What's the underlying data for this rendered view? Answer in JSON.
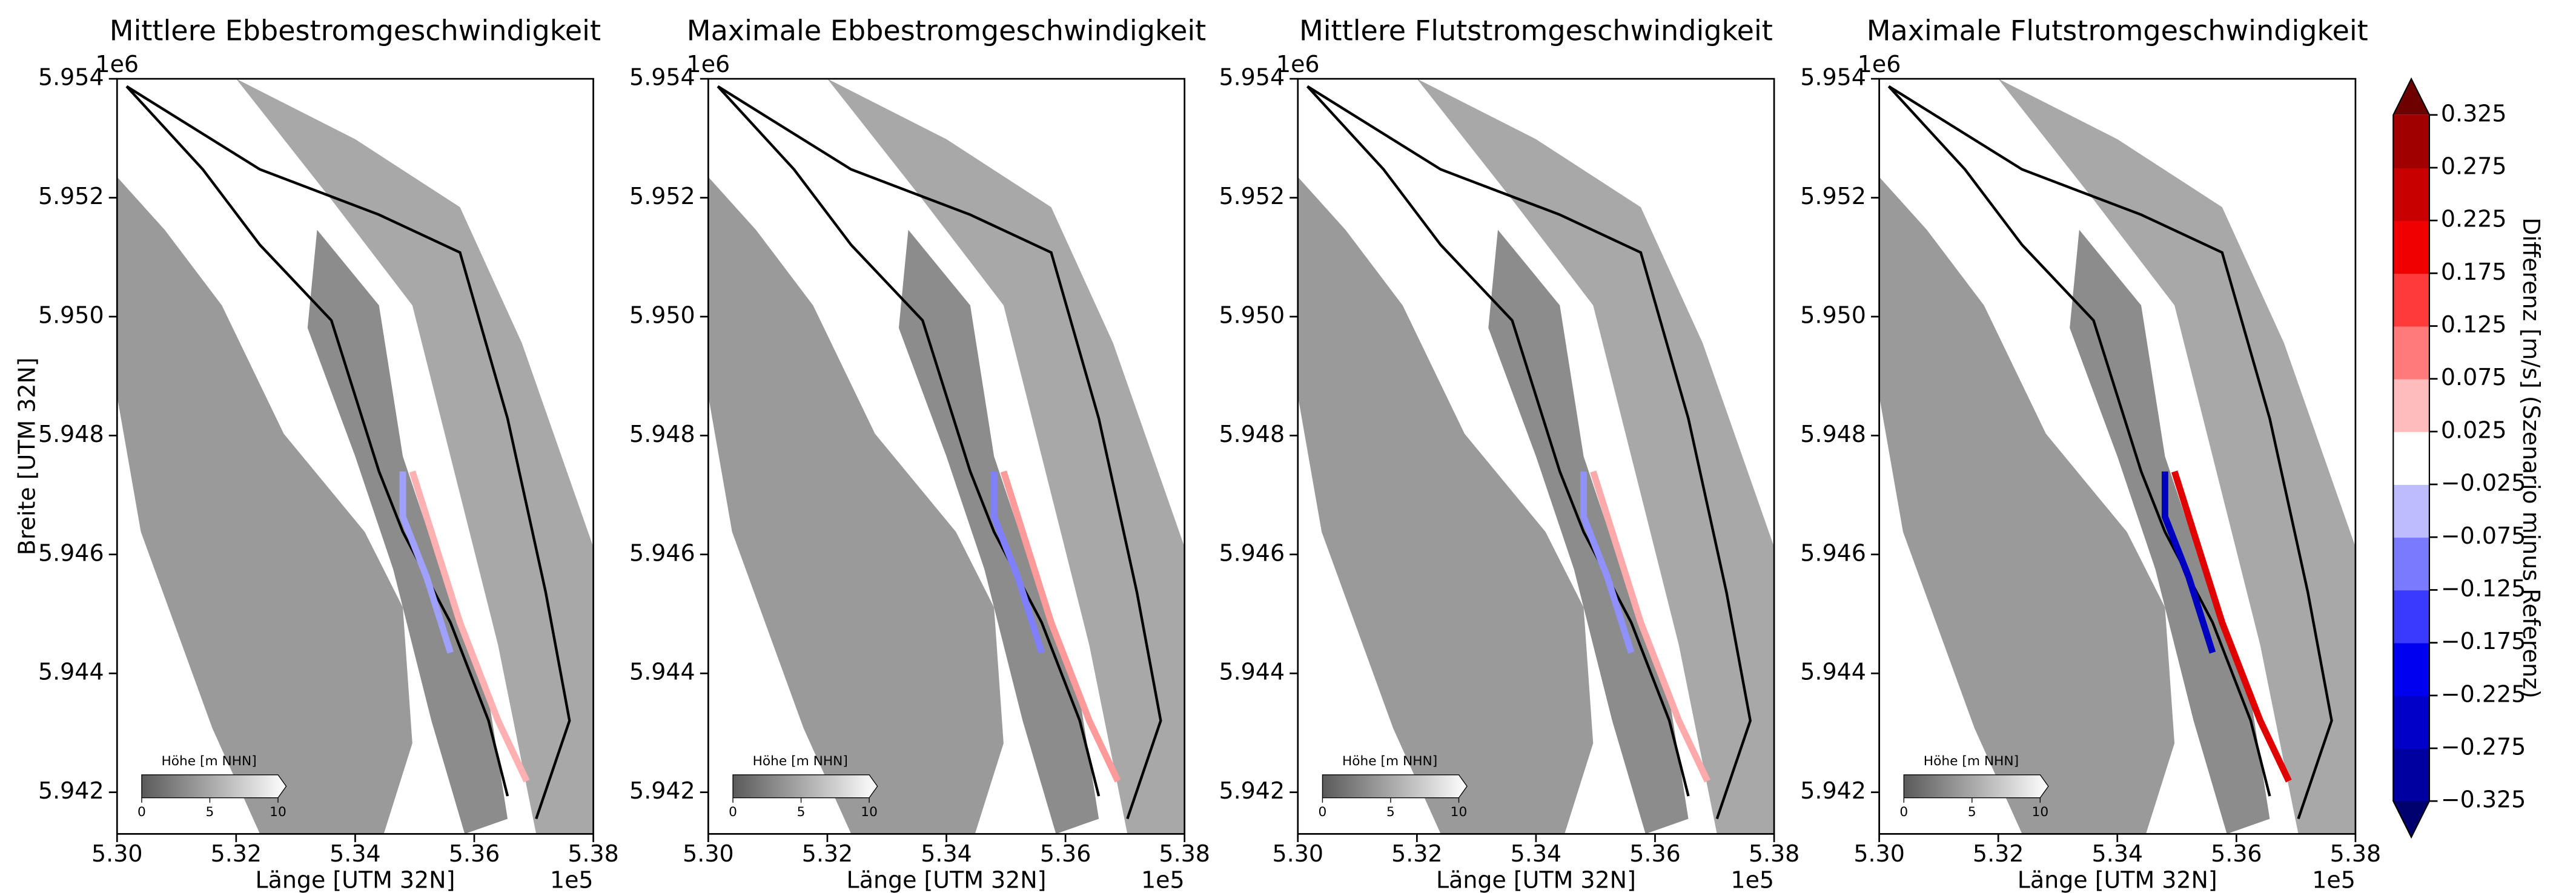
{
  "chart_data": [
    {
      "type": "map",
      "title": "Mittlere Ebbestromgeschwindigkeit",
      "xlabel": "Länge [UTM 32N]",
      "ylabel": "Breite [UTM 32N]",
      "x_offset": "1e5",
      "y_offset": "1e6",
      "xlim": [
        530000,
        538000
      ],
      "ylim": [
        5941300,
        5954000
      ],
      "xticks": [
        {
          "value": 530000,
          "label": "5.30"
        },
        {
          "value": 532000,
          "label": "5.32"
        },
        {
          "value": 534000,
          "label": "5.34"
        },
        {
          "value": 536000,
          "label": "5.36"
        },
        {
          "value": 538000,
          "label": "5.38"
        }
      ],
      "yticks": [
        {
          "value": 5942000,
          "label": "5.942"
        },
        {
          "value": 5944000,
          "label": "5.944"
        },
        {
          "value": 5946000,
          "label": "5.946"
        },
        {
          "value": 5948000,
          "label": "5.948"
        },
        {
          "value": 5950000,
          "label": "5.950"
        },
        {
          "value": 5952000,
          "label": "5.952"
        },
        {
          "value": 5954000,
          "label": "5.954"
        }
      ],
      "inset": {
        "label": "Höhe [m NHN]",
        "lim": [
          0,
          10
        ],
        "ticks": [
          0,
          5,
          10
        ]
      }
    },
    {
      "type": "map",
      "title": "Maximale Ebbestromgeschwindigkeit",
      "xlabel": "Länge [UTM 32N]",
      "x_offset": "1e5",
      "y_offset": "1e6",
      "xlim": [
        530000,
        538000
      ],
      "ylim": [
        5941300,
        5954000
      ],
      "xticks": [
        {
          "value": 530000,
          "label": "5.30"
        },
        {
          "value": 532000,
          "label": "5.32"
        },
        {
          "value": 534000,
          "label": "5.34"
        },
        {
          "value": 536000,
          "label": "5.36"
        },
        {
          "value": 538000,
          "label": "5.38"
        }
      ],
      "yticks": [
        {
          "value": 5942000,
          "label": "5.942"
        },
        {
          "value": 5944000,
          "label": "5.944"
        },
        {
          "value": 5946000,
          "label": "5.946"
        },
        {
          "value": 5948000,
          "label": "5.948"
        },
        {
          "value": 5950000,
          "label": "5.950"
        },
        {
          "value": 5952000,
          "label": "5.952"
        },
        {
          "value": 5954000,
          "label": "5.954"
        }
      ],
      "inset": {
        "label": "Höhe [m NHN]",
        "lim": [
          0,
          10
        ],
        "ticks": [
          0,
          5,
          10
        ]
      }
    },
    {
      "type": "map",
      "title": "Mittlere Flutstromgeschwindigkeit",
      "xlabel": "Länge [UTM 32N]",
      "x_offset": "1e5",
      "y_offset": "1e6",
      "xlim": [
        530000,
        538000
      ],
      "ylim": [
        5941300,
        5954000
      ],
      "xticks": [
        {
          "value": 530000,
          "label": "5.30"
        },
        {
          "value": 532000,
          "label": "5.32"
        },
        {
          "value": 534000,
          "label": "5.34"
        },
        {
          "value": 536000,
          "label": "5.36"
        },
        {
          "value": 538000,
          "label": "5.38"
        }
      ],
      "yticks": [
        {
          "value": 5942000,
          "label": "5.942"
        },
        {
          "value": 5944000,
          "label": "5.944"
        },
        {
          "value": 5946000,
          "label": "5.946"
        },
        {
          "value": 5948000,
          "label": "5.948"
        },
        {
          "value": 5950000,
          "label": "5.950"
        },
        {
          "value": 5952000,
          "label": "5.952"
        },
        {
          "value": 5954000,
          "label": "5.954"
        }
      ],
      "inset": {
        "label": "Höhe [m NHN]",
        "lim": [
          0,
          10
        ],
        "ticks": [
          0,
          5,
          10
        ]
      }
    },
    {
      "type": "map",
      "title": "Maximale Flutstromgeschwindigkeit",
      "xlabel": "Länge [UTM 32N]",
      "x_offset": "1e5",
      "y_offset": "1e6",
      "xlim": [
        530000,
        538000
      ],
      "ylim": [
        5941300,
        5954000
      ],
      "xticks": [
        {
          "value": 530000,
          "label": "5.30"
        },
        {
          "value": 532000,
          "label": "5.32"
        },
        {
          "value": 534000,
          "label": "5.34"
        },
        {
          "value": 536000,
          "label": "5.36"
        },
        {
          "value": 538000,
          "label": "5.38"
        }
      ],
      "yticks": [
        {
          "value": 5942000,
          "label": "5.942"
        },
        {
          "value": 5944000,
          "label": "5.944"
        },
        {
          "value": 5946000,
          "label": "5.946"
        },
        {
          "value": 5948000,
          "label": "5.948"
        },
        {
          "value": 5950000,
          "label": "5.950"
        },
        {
          "value": 5952000,
          "label": "5.952"
        },
        {
          "value": 5954000,
          "label": "5.954"
        }
      ],
      "inset": {
        "label": "Höhe [m NHN]",
        "lim": [
          0,
          10
        ],
        "ticks": [
          0,
          5,
          10
        ]
      }
    }
  ],
  "colorbar": {
    "label": "Differenz [m/s] (Szenario minus Referenz)",
    "lim": [
      -0.325,
      0.325
    ],
    "ticks": [
      {
        "value": -0.325,
        "label": "−0.325"
      },
      {
        "value": -0.275,
        "label": "−0.275"
      },
      {
        "value": -0.225,
        "label": "−0.225"
      },
      {
        "value": -0.175,
        "label": "−0.175"
      },
      {
        "value": -0.125,
        "label": "−0.125"
      },
      {
        "value": -0.075,
        "label": "−0.075"
      },
      {
        "value": -0.025,
        "label": "−0.025"
      },
      0.025,
      0.075,
      0.125,
      0.175,
      0.225,
      0.275,
      0.325
    ],
    "colors": [
      "#0000a0",
      "#0000c8",
      "#0000f0",
      "#3a3aff",
      "#7a7aff",
      "#bcbcff",
      "#ffffff",
      "#ffbcbc",
      "#ff7a7a",
      "#ff3a3a",
      "#f00000",
      "#c80000",
      "#a00000"
    ],
    "under_color": "#00006e",
    "over_color": "#6e0000"
  }
}
